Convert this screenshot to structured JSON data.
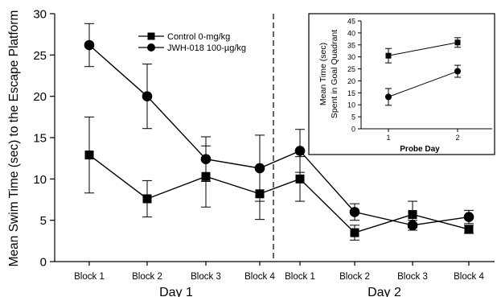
{
  "chart_data": [
    {
      "type": "line",
      "ylabel": "Mean Swim Time (sec) to the Escape Platform",
      "ylim": [
        0,
        30
      ],
      "yticks": [
        0,
        5,
        10,
        15,
        20,
        25,
        30
      ],
      "categories": [
        "Block 1",
        "Block 2",
        "Block 3",
        "Block 4",
        "Block 1",
        "Block 2",
        "Block 3",
        "Block 4"
      ],
      "groups": [
        "Day 1",
        "Day 2"
      ],
      "legend_position": "top-center",
      "series": [
        {
          "name": "Control 0-mg/kg",
          "marker": "square",
          "values": [
            12.9,
            7.6,
            10.3,
            8.2,
            10.0,
            3.5,
            5.7,
            3.9
          ],
          "error": [
            4.6,
            2.2,
            3.7,
            3.1,
            2.7,
            0.9,
            1.6,
            0.5
          ]
        },
        {
          "name": "JWH-018 100-µg/kg",
          "marker": "circle",
          "values": [
            26.2,
            20.0,
            12.4,
            11.3,
            13.4,
            6.0,
            4.4,
            5.4
          ],
          "error": [
            2.6,
            3.9,
            2.7,
            4.0,
            2.6,
            1.0,
            0.6,
            0.8
          ]
        }
      ]
    },
    {
      "type": "line",
      "title": "",
      "xlabel": "Probe Day",
      "ylabel_line1": "Mean Time (sec)",
      "ylabel_line2": "Spent in Goal Quadrant",
      "ylim": [
        0,
        45
      ],
      "yticks": [
        0,
        5,
        10,
        15,
        20,
        25,
        30,
        35,
        40,
        45
      ],
      "categories": [
        "1",
        "2"
      ],
      "series": [
        {
          "name": "Control 0-mg/kg",
          "marker": "square",
          "values": [
            30.5,
            36.0
          ],
          "error": [
            3.0,
            2.0
          ]
        },
        {
          "name": "JWH-018 100-µg/kg",
          "marker": "circle",
          "values": [
            13.3,
            24.0
          ],
          "error": [
            3.5,
            2.5
          ]
        }
      ]
    }
  ]
}
